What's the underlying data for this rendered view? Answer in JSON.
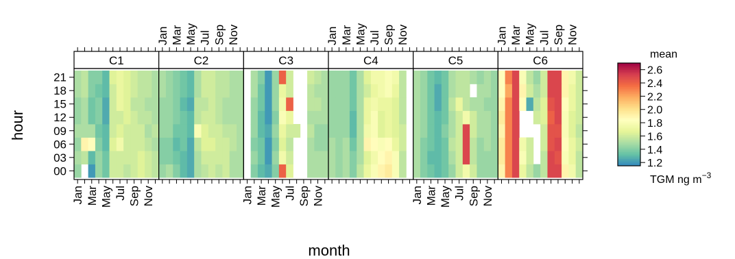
{
  "chart_data": {
    "type": "heatmap",
    "xlabel": "month",
    "ylabel": "hour",
    "panels": [
      "C1",
      "C2",
      "C3",
      "C4",
      "C5",
      "C6"
    ],
    "month_tick_labels": [
      "Jan",
      "Mar",
      "May",
      "Jul",
      "Sep",
      "Nov"
    ],
    "month_tick_labels_on_bottom_panels": [
      "C1",
      "C3",
      "C5"
    ],
    "month_tick_labels_on_top_panels": [
      "C2",
      "C4",
      "C6"
    ],
    "hour_tick_labels": [
      "00",
      "03",
      "06",
      "09",
      "12",
      "15",
      "18",
      "21"
    ],
    "hour_values": [
      0,
      3,
      6,
      9,
      12,
      15,
      18,
      21
    ],
    "legend": {
      "title": "mean",
      "unit_label": "TGM ng m",
      "unit_exponent": "−3",
      "ticks": [
        "1.2",
        "1.4",
        "1.6",
        "1.8",
        "2.0",
        "2.2",
        "2.4",
        "2.6"
      ],
      "range": [
        1.15,
        2.7
      ],
      "colors": [
        "#3288bd",
        "#66c2a5",
        "#abdda4",
        "#e6f598",
        "#ffffbf",
        "#fee08b",
        "#fdae61",
        "#f46d43",
        "#d53e4f",
        "#9e0142"
      ],
      "position": "right"
    },
    "values_note_months_order": "rows = hours 00..21, columns = Jan..Dec (approximate, read from colour)",
    "data": {
      "C1": [
        [
          1.45,
          null,
          1.2,
          1.45,
          1.35,
          1.6,
          1.6,
          1.55,
          1.6,
          1.65,
          1.6,
          1.55
        ],
        [
          1.5,
          1.55,
          1.3,
          1.45,
          1.35,
          1.6,
          1.6,
          1.6,
          1.6,
          1.65,
          1.6,
          1.55
        ],
        [
          1.45,
          1.9,
          1.85,
          1.4,
          1.3,
          1.65,
          1.75,
          1.6,
          1.6,
          1.6,
          1.55,
          1.5
        ],
        [
          1.5,
          1.5,
          1.5,
          1.35,
          1.3,
          1.6,
          1.65,
          1.6,
          1.6,
          1.6,
          1.5,
          1.55
        ],
        [
          1.45,
          1.5,
          1.35,
          1.4,
          1.25,
          1.6,
          1.6,
          1.65,
          1.6,
          1.55,
          1.55,
          1.5
        ],
        [
          1.45,
          1.5,
          1.35,
          1.4,
          1.25,
          1.6,
          1.7,
          1.65,
          1.55,
          1.55,
          1.5,
          1.5
        ],
        [
          1.5,
          1.55,
          1.4,
          1.35,
          1.3,
          1.6,
          1.7,
          1.65,
          1.6,
          1.55,
          1.55,
          1.5
        ],
        [
          1.5,
          1.55,
          1.4,
          1.4,
          1.3,
          1.65,
          1.7,
          1.65,
          1.6,
          1.55,
          1.55,
          1.5
        ]
      ],
      "C2": [
        [
          1.45,
          1.5,
          1.4,
          1.3,
          1.25,
          1.5,
          1.55,
          1.6,
          1.55,
          1.6,
          1.5,
          1.5
        ],
        [
          1.4,
          1.4,
          1.35,
          1.3,
          1.25,
          1.5,
          1.6,
          1.6,
          1.6,
          1.6,
          1.5,
          1.5
        ],
        [
          1.4,
          1.4,
          1.3,
          1.35,
          1.25,
          1.55,
          1.65,
          1.65,
          1.6,
          1.6,
          1.55,
          1.5
        ],
        [
          1.45,
          1.45,
          1.35,
          1.35,
          1.3,
          1.8,
          1.65,
          1.6,
          1.6,
          1.55,
          1.55,
          1.5
        ],
        [
          1.45,
          1.45,
          1.4,
          1.35,
          1.3,
          1.55,
          1.6,
          1.6,
          1.55,
          1.5,
          1.5,
          1.5
        ],
        [
          1.45,
          1.45,
          1.4,
          1.3,
          1.25,
          1.55,
          1.55,
          1.6,
          1.55,
          1.5,
          1.5,
          1.5
        ],
        [
          1.5,
          1.45,
          1.4,
          1.35,
          1.3,
          1.5,
          1.6,
          1.6,
          1.55,
          1.55,
          1.5,
          1.5
        ],
        [
          1.5,
          1.45,
          1.4,
          1.35,
          1.3,
          1.5,
          1.6,
          1.6,
          1.55,
          1.55,
          1.5,
          1.5
        ]
      ],
      "C3": [
        [
          null,
          1.4,
          1.3,
          1.25,
          1.4,
          2.4,
          1.65,
          null,
          null,
          1.5,
          1.5,
          1.5
        ],
        [
          null,
          1.45,
          1.35,
          1.2,
          1.45,
          1.75,
          1.6,
          null,
          null,
          1.5,
          1.5,
          1.5
        ],
        [
          null,
          1.4,
          1.35,
          1.2,
          1.4,
          1.65,
          1.55,
          null,
          null,
          1.5,
          1.45,
          1.45
        ],
        [
          null,
          1.45,
          1.3,
          1.25,
          1.45,
          1.7,
          1.6,
          1.6,
          null,
          1.55,
          1.45,
          1.45
        ],
        [
          null,
          1.45,
          1.3,
          1.2,
          1.4,
          1.8,
          1.7,
          null,
          null,
          1.5,
          1.5,
          1.5
        ],
        [
          null,
          1.45,
          1.35,
          1.2,
          1.45,
          1.75,
          2.4,
          null,
          null,
          1.55,
          1.55,
          1.5
        ],
        [
          null,
          1.5,
          1.35,
          1.2,
          1.45,
          1.7,
          1.6,
          null,
          null,
          1.55,
          1.5,
          1.5
        ],
        [
          null,
          1.5,
          1.4,
          1.2,
          1.45,
          2.4,
          1.6,
          null,
          null,
          1.6,
          1.55,
          1.5
        ]
      ],
      "C4": [
        [
          1.5,
          1.45,
          1.5,
          1.4,
          1.55,
          1.7,
          1.8,
          1.9,
          1.95,
          1.8,
          1.55,
          null
        ],
        [
          1.5,
          1.45,
          1.5,
          1.4,
          1.5,
          1.65,
          1.75,
          1.85,
          1.9,
          1.8,
          1.55,
          null
        ],
        [
          1.5,
          1.45,
          1.5,
          1.35,
          1.5,
          1.9,
          1.85,
          1.8,
          1.85,
          1.7,
          1.6,
          null
        ],
        [
          1.45,
          1.45,
          1.45,
          1.3,
          1.5,
          1.75,
          1.8,
          1.65,
          1.7,
          1.65,
          1.6,
          null
        ],
        [
          1.45,
          1.45,
          1.45,
          1.3,
          1.5,
          1.7,
          1.8,
          1.65,
          1.7,
          1.65,
          1.55,
          null
        ],
        [
          1.45,
          1.45,
          1.45,
          1.35,
          1.5,
          1.7,
          1.75,
          1.7,
          1.7,
          1.65,
          1.55,
          null
        ],
        [
          1.45,
          1.45,
          1.45,
          1.35,
          1.5,
          1.6,
          1.7,
          1.75,
          1.8,
          1.7,
          1.55,
          null
        ],
        [
          1.45,
          1.45,
          1.45,
          1.35,
          1.5,
          1.65,
          1.75,
          1.75,
          1.8,
          1.75,
          1.55,
          null
        ]
      ],
      "C5": [
        [
          1.5,
          1.4,
          1.35,
          1.3,
          1.35,
          1.45,
          1.6,
          1.75,
          1.6,
          1.45,
          1.45,
          1.45
        ],
        [
          1.5,
          1.4,
          1.3,
          1.3,
          1.35,
          1.5,
          1.6,
          2.5,
          1.55,
          1.45,
          1.45,
          1.45
        ],
        [
          1.5,
          1.4,
          1.35,
          1.3,
          1.35,
          1.55,
          1.6,
          2.5,
          1.55,
          1.45,
          1.5,
          1.45
        ],
        [
          1.5,
          1.45,
          1.35,
          1.3,
          1.4,
          1.5,
          1.6,
          2.5,
          1.6,
          1.5,
          1.5,
          1.45
        ],
        [
          1.5,
          1.45,
          1.35,
          1.3,
          1.35,
          1.5,
          1.6,
          1.75,
          1.6,
          1.5,
          1.5,
          1.45
        ],
        [
          1.5,
          1.45,
          1.35,
          1.25,
          1.35,
          1.55,
          1.7,
          1.55,
          1.5,
          1.5,
          1.45,
          1.45
        ],
        [
          1.5,
          1.45,
          1.35,
          1.25,
          1.35,
          1.5,
          1.55,
          1.55,
          null,
          1.5,
          1.5,
          1.45
        ],
        [
          1.5,
          1.45,
          1.35,
          1.3,
          1.35,
          1.5,
          1.55,
          1.55,
          1.5,
          1.45,
          1.5,
          1.45
        ]
      ],
      "C6": [
        [
          1.9,
          2.3,
          2.5,
          1.7,
          1.55,
          1.45,
          1.55,
          2.5,
          2.5,
          1.9,
          1.75,
          1.55
        ],
        [
          1.95,
          2.3,
          2.5,
          1.8,
          1.6,
          null,
          1.55,
          2.5,
          2.45,
          1.8,
          1.7,
          1.55
        ],
        [
          1.95,
          2.3,
          2.5,
          1.75,
          1.6,
          null,
          1.6,
          2.45,
          2.5,
          1.85,
          1.7,
          1.6
        ],
        [
          1.9,
          2.3,
          2.5,
          null,
          null,
          null,
          1.6,
          2.45,
          2.45,
          1.8,
          1.65,
          1.55
        ],
        [
          1.95,
          2.3,
          2.5,
          null,
          null,
          1.6,
          1.65,
          2.4,
          2.5,
          1.8,
          1.65,
          1.6
        ],
        [
          1.9,
          2.3,
          2.5,
          1.85,
          1.25,
          1.55,
          1.65,
          2.45,
          2.5,
          1.85,
          1.7,
          1.6
        ],
        [
          1.85,
          2.2,
          2.5,
          1.9,
          1.6,
          1.5,
          1.6,
          2.5,
          2.5,
          1.9,
          1.7,
          1.6
        ],
        [
          1.85,
          2.3,
          2.5,
          1.8,
          1.55,
          1.45,
          1.6,
          2.5,
          2.5,
          1.9,
          1.75,
          1.6
        ]
      ]
    }
  }
}
